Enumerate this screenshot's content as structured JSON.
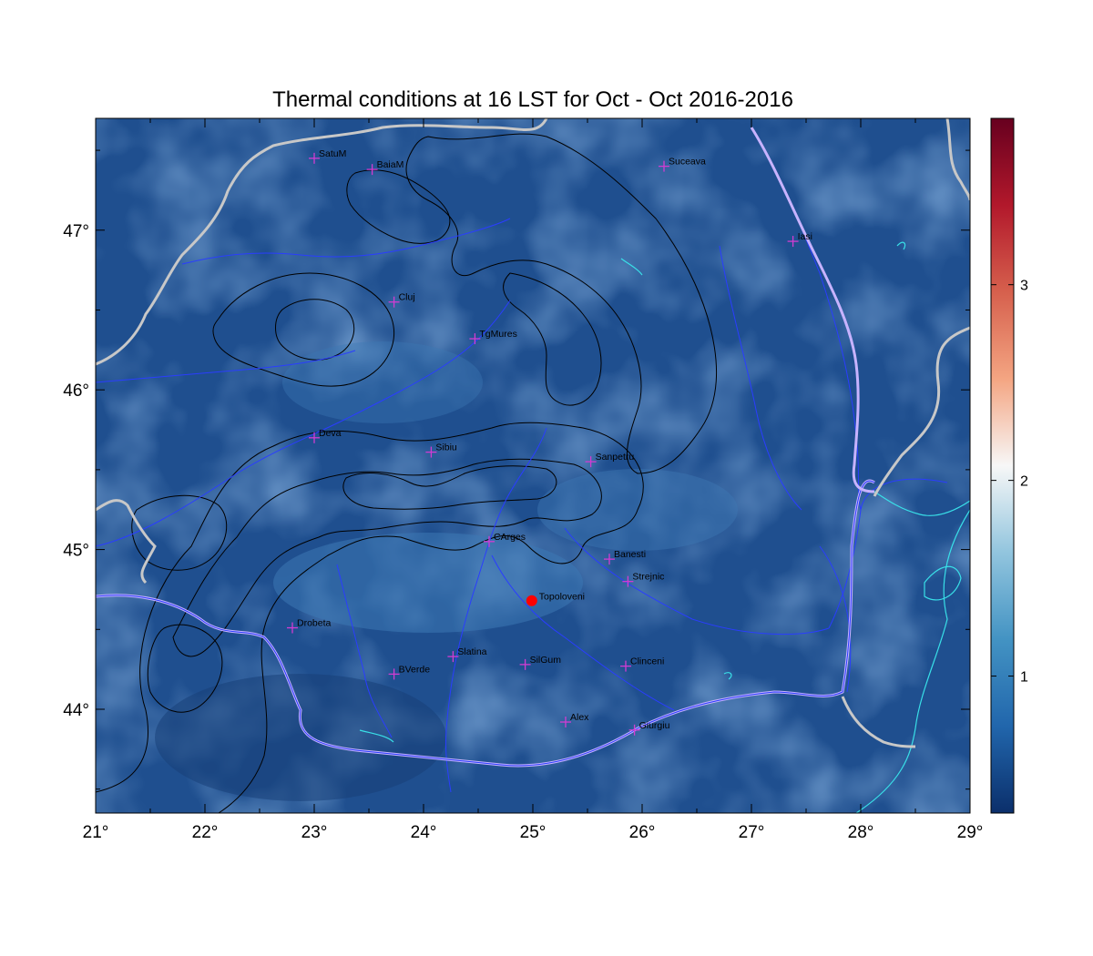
{
  "title": "Thermal conditions at 16 LST for Oct - Oct  2016-2016",
  "colors": {
    "field_base": "#1f4f8f",
    "field_light": "#3d78b4",
    "field_dark": "#173f78",
    "border": "#c8c8c8",
    "rivers": "#2a3dff",
    "lakes": "#39e0e8",
    "danube": "#c7b3ff",
    "contours": "#000000",
    "station_marker": "#d23cd2",
    "highlight_marker": "#ff0000"
  },
  "axes": {
    "x_ticks": [
      "21°",
      "22°",
      "23°",
      "24°",
      "25°",
      "26°",
      "27°",
      "28°",
      "29°"
    ],
    "y_ticks": [
      "44°",
      "45°",
      "46°",
      "47°"
    ]
  },
  "stations": [
    {
      "name": "SatuM",
      "lon": 23.0,
      "lat": 47.45
    },
    {
      "name": "BaiaM",
      "lon": 23.53,
      "lat": 47.38
    },
    {
      "name": "Suceava",
      "lon": 26.2,
      "lat": 47.4
    },
    {
      "name": "Iasi",
      "lon": 27.38,
      "lat": 46.93
    },
    {
      "name": "Cluj",
      "lon": 23.73,
      "lat": 46.55
    },
    {
      "name": "TgMures",
      "lon": 24.47,
      "lat": 46.32
    },
    {
      "name": "Deva",
      "lon": 23.0,
      "lat": 45.7
    },
    {
      "name": "Sibiu",
      "lon": 24.07,
      "lat": 45.61
    },
    {
      "name": "Sanpetru",
      "lon": 25.53,
      "lat": 45.55
    },
    {
      "name": "CArges",
      "lon": 24.6,
      "lat": 45.05
    },
    {
      "name": "Banesti",
      "lon": 25.7,
      "lat": 44.94
    },
    {
      "name": "Strejnic",
      "lon": 25.87,
      "lat": 44.8
    },
    {
      "name": "Drobeta",
      "lon": 22.8,
      "lat": 44.51
    },
    {
      "name": "Slatina",
      "lon": 24.27,
      "lat": 44.33
    },
    {
      "name": "SilGum",
      "lon": 24.93,
      "lat": 44.28
    },
    {
      "name": "Clinceni",
      "lon": 25.85,
      "lat": 44.27
    },
    {
      "name": "BVerde",
      "lon": 23.73,
      "lat": 44.22
    },
    {
      "name": "Alex",
      "lon": 25.3,
      "lat": 43.92
    },
    {
      "name": "Giurgiu",
      "lon": 25.93,
      "lat": 43.87
    }
  ],
  "highlight_site": {
    "name": "Topoloveni",
    "lon": 24.99,
    "lat": 44.68
  },
  "colorbar": {
    "range": [
      0.3,
      3.85
    ],
    "ticks": [
      "1",
      "2",
      "3"
    ],
    "tick_values": [
      1,
      2,
      3
    ],
    "colors": [
      "#0b2f6b",
      "#2166ac",
      "#4393c3",
      "#92c5de",
      "#f7f7f7",
      "#f4a582",
      "#d6604d",
      "#b2182b",
      "#67001f"
    ]
  }
}
